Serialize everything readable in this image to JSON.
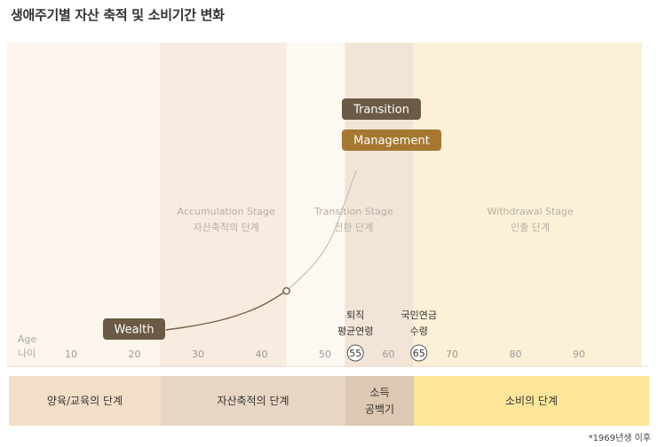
{
  "page": {
    "title": "생애주기별 자산 축적 및 소비기간 변화",
    "footnote": "*1969년생 이후"
  },
  "colors": {
    "band_pre": "#fdf5ee",
    "band_accum": "#f8ebe0",
    "band_post": "#fdf8f1",
    "band_transition": "#f2e5d8",
    "band_withdraw": "#fcf1d6",
    "stage_bar_edu": "#f3dfc8",
    "stage_bar_accum": "#e7d6c3",
    "stage_bar_gap": "#dcc8b3",
    "stage_bar_consume": "#fde59a",
    "label_dark": "#6b5a45",
    "label_brown": "#a57730",
    "curve": "#7a6148",
    "curve_light": "#c8c0b8",
    "axis_text": "#999999"
  },
  "chart_data": {
    "type": "line",
    "title": "생애주기별 자산 축적 및 소비기간 변화",
    "xlabel": "Age 나이",
    "xlim": [
      0,
      100
    ],
    "xticks": [
      10,
      20,
      30,
      40,
      50,
      60,
      70,
      80,
      90
    ],
    "highlight_ticks": [
      {
        "value": 55,
        "label_lines": [
          "퇴직",
          "평균연령"
        ]
      },
      {
        "value": 65,
        "label_lines": [
          "국민연금",
          "수령"
        ]
      }
    ],
    "series": [
      {
        "name": "Wealth",
        "x": [
          25,
          30,
          35,
          40,
          44
        ],
        "y": [
          0,
          5,
          13,
          26,
          44
        ]
      },
      {
        "name": "",
        "x": [
          44,
          48,
          51,
          53,
          55
        ],
        "y": [
          44,
          70,
          100,
          140,
          180
        ]
      }
    ],
    "marker": {
      "x": 44,
      "y": 44
    },
    "stages": [
      {
        "id": "accumulation",
        "en": "Accumulation Stage",
        "ko": "자산축적의 단계",
        "from": 25,
        "to": 45
      },
      {
        "id": "transition",
        "en": "Transition Stage",
        "ko": "전환 단계",
        "from": 45,
        "to": 65
      },
      {
        "id": "withdrawal",
        "en": "Withdrawal Stage",
        "ko": "인출 단계",
        "from": 65,
        "to": 100
      }
    ],
    "labels": {
      "wealth": "Wealth",
      "transition": "Transition",
      "management": "Management"
    },
    "stage_bars": [
      {
        "label_lines": [
          "양육/교육의 단계"
        ],
        "from": 0,
        "to": 25
      },
      {
        "label_lines": [
          "자산축적의 단계"
        ],
        "from": 25,
        "to": 55
      },
      {
        "label_lines": [
          "소득",
          "공백기"
        ],
        "from": 55,
        "to": 65
      },
      {
        "label_lines": [
          "소비의 단계"
        ],
        "from": 65,
        "to": 100
      }
    ]
  }
}
